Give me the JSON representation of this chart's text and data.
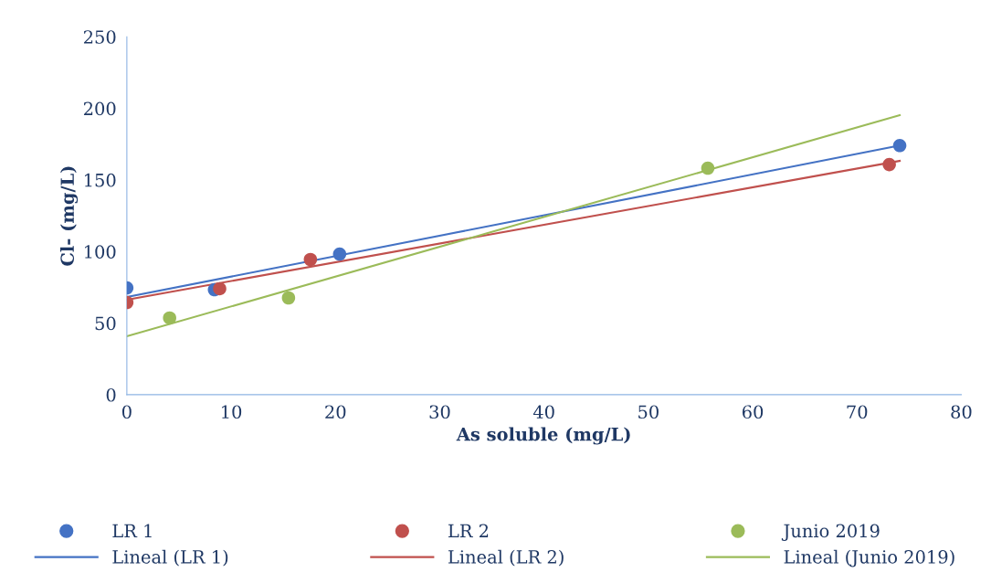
{
  "chart_data": {
    "type": "scatter",
    "xlabel": "As soluble (mg/L)",
    "ylabel": "Cl- (mg/L)",
    "xlim": [
      0,
      80
    ],
    "xticks": [
      0,
      10,
      20,
      30,
      40,
      50,
      60,
      70,
      80
    ],
    "ylim": [
      0,
      250
    ],
    "yticks": [
      0,
      50,
      100,
      150,
      200,
      250
    ],
    "grid": false,
    "legend": "bottom",
    "series": [
      {
        "name": "LR 1",
        "marker": "circle",
        "color": "#4472c4",
        "x": [
          0,
          8.4,
          20.4,
          74.1
        ],
        "values": [
          74.6,
          73.3,
          98.2,
          174
        ]
      },
      {
        "name": "LR 2",
        "marker": "circle",
        "color": "#c0504d",
        "x": [
          0,
          8.9,
          17.6,
          73.1
        ],
        "values": [
          64.4,
          74,
          94.4,
          160.7
        ]
      },
      {
        "name": "Junio 2019",
        "marker": "circle",
        "color": "#9bbb59",
        "x": [
          4.1,
          15.5,
          55.7
        ],
        "values": [
          53.6,
          67.6,
          158.2
        ]
      },
      {
        "name": "Lineal (LR 1)",
        "type": "line",
        "color": "#4472c4",
        "x": [
          0,
          74.1
        ],
        "values": [
          68.2,
          174
        ]
      },
      {
        "name": "Lineal (LR 2)",
        "type": "line",
        "color": "#c0504d",
        "x": [
          0,
          74.1
        ],
        "values": [
          66.3,
          163.3
        ]
      },
      {
        "name": "Lineal (Junio 2019)",
        "type": "line",
        "color": "#9bbb59",
        "x": [
          0,
          74.1
        ],
        "values": [
          40.8,
          195.2
        ]
      }
    ]
  }
}
